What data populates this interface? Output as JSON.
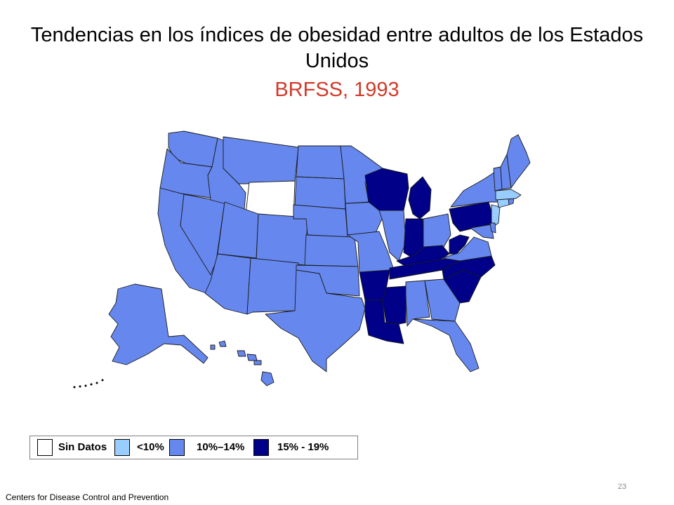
{
  "title": "Tendencias en los índices de obesidad entre adultos de los Estados Unidos",
  "subtitle": "BRFSS, 1993",
  "colors": {
    "title": "#000000",
    "subtitle": "#d03a2a",
    "no_data": "#ffffff",
    "lt10": "#99ccff",
    "10_14": "#6688ee",
    "15_19": "#000088",
    "border": "#1a1a1a"
  },
  "legend": [
    {
      "key": "no_data",
      "label": "Sin Datos"
    },
    {
      "key": "lt10",
      "label": "<10%"
    },
    {
      "key": "10_14",
      "label": "10%–14%"
    },
    {
      "key": "15_19",
      "label": "15% - 19%"
    }
  ],
  "categories": {
    "no_data": [
      "WY"
    ],
    "lt10": [
      "MA",
      "NJ",
      "CT"
    ],
    "15_19": [
      "WI",
      "MI",
      "IN",
      "KY",
      "WV",
      "PA",
      "TN",
      "NC",
      "SC",
      "MS",
      "AR",
      "LA"
    ],
    "10_14": [
      "WA",
      "OR",
      "CA",
      "NV",
      "ID",
      "MT",
      "UT",
      "AZ",
      "CO",
      "NM",
      "ND",
      "SD",
      "NE",
      "KS",
      "OK",
      "TX",
      "MN",
      "IA",
      "MO",
      "IL",
      "OH",
      "NY",
      "VT",
      "NH",
      "ME",
      "RI",
      "DE",
      "MD",
      "VA",
      "AL",
      "GA",
      "FL",
      "AK",
      "HI"
    ]
  },
  "credit": "Centers for Disease Control and Prevention",
  "page_number": "23"
}
